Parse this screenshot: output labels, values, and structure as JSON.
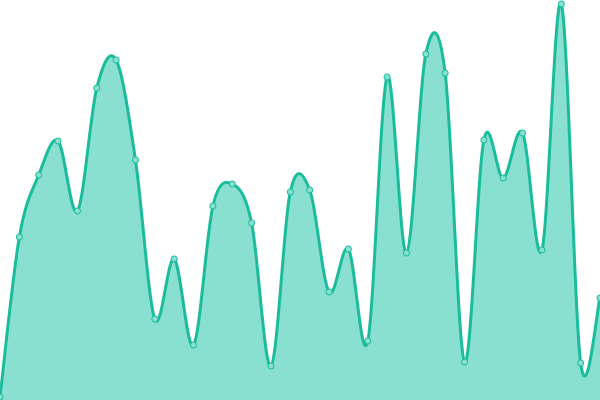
{
  "chart_data": {
    "type": "area",
    "curve": "smooth",
    "grid": false,
    "axes_visible": false,
    "ylim": [
      0,
      400
    ],
    "x": [
      0,
      1,
      2,
      3,
      4,
      5,
      6,
      7,
      8,
      9,
      10,
      11,
      12,
      13,
      14,
      15,
      16,
      17,
      18,
      19,
      20,
      21,
      22,
      23,
      24,
      25,
      26,
      27,
      28,
      29,
      30,
      31
    ],
    "values": [
      3,
      163,
      225,
      259,
      189,
      312,
      340,
      240,
      81,
      141,
      55,
      194,
      216,
      177,
      34,
      208,
      210,
      108,
      151,
      59,
      323,
      147,
      346,
      327,
      38,
      260,
      222,
      267,
      150,
      396,
      37,
      102
    ],
    "colors": {
      "line": "#1abc9c",
      "fill": "#8ae0d0",
      "marker_fill": "#8ae0d0",
      "marker_stroke": "#1abc9c"
    }
  }
}
